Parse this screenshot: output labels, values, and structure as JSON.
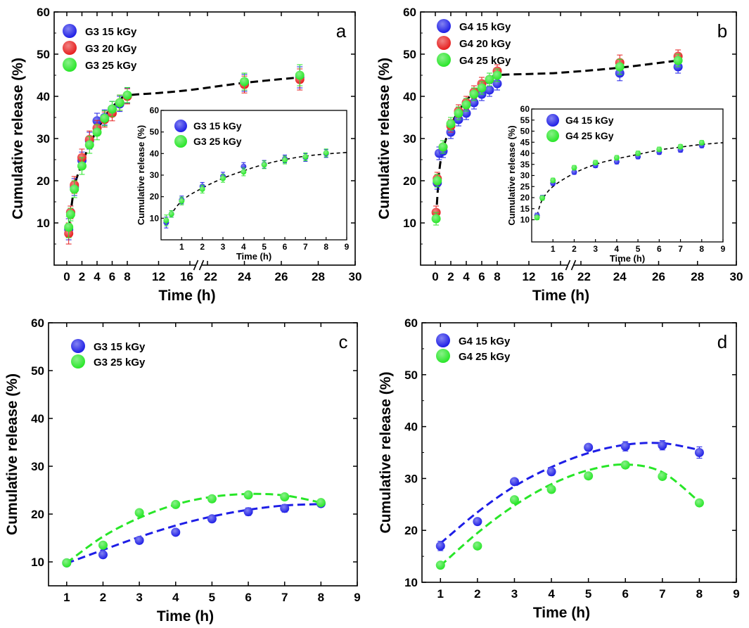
{
  "figure": {
    "description_label": "Cumulative release (%)",
    "x_label": "Time (h)"
  },
  "chart_data": [
    {
      "panel": "a",
      "type": "scatter",
      "title": "",
      "xlabel": "Time (h)",
      "ylabel": "Cumulative release (%)",
      "xlim": [
        -1,
        30
      ],
      "ylim": [
        0,
        60
      ],
      "x_ticks": [
        "0",
        "2",
        "4",
        "6",
        "8",
        "12",
        "16",
        "22",
        "24",
        "26",
        "28",
        "30"
      ],
      "y_ticks": [
        "10",
        "20",
        "30",
        "40",
        "50",
        "60"
      ],
      "axis_break": "16-22",
      "colors": {
        "G3 15 kGy": "#1e1ee6",
        "G3 20 kGy": "#e61e1e",
        "G3 25 kGy": "#28e628"
      },
      "series": [
        {
          "name": "G3 15 kGy",
          "x": [
            0.25,
            0.5,
            1,
            2,
            3,
            4,
            5,
            6,
            7,
            8,
            24,
            27
          ],
          "values": [
            8.5,
            12.5,
            18.5,
            24.8,
            29.5,
            34.2,
            35,
            37,
            38.2,
            40.2,
            43.2,
            44.5
          ],
          "errors": [
            2.5,
            1.5,
            2,
            2,
            2,
            1.8,
            1.8,
            1.8,
            1.8,
            1.8,
            2,
            2.5
          ]
        },
        {
          "name": "G3 20 kGy",
          "x": [
            0.25,
            0.5,
            1,
            2,
            3,
            4,
            5,
            6,
            7,
            8,
            24,
            27
          ],
          "values": [
            7.5,
            12.5,
            19,
            25.5,
            29.8,
            32.5,
            34.5,
            36,
            38.5,
            40,
            42.8,
            44
          ],
          "errors": [
            2.5,
            1.5,
            2,
            2,
            2,
            1.8,
            1.8,
            1.8,
            1.8,
            1.8,
            2,
            2.5
          ]
        },
        {
          "name": "G3 25 kGy",
          "x": [
            0.25,
            0.5,
            1,
            2,
            3,
            4,
            5,
            6,
            7,
            8,
            24,
            27
          ],
          "values": [
            9,
            12,
            18,
            23.5,
            28.5,
            31.5,
            34.8,
            37,
            38.5,
            40.3,
            43.5,
            45
          ],
          "errors": [
            2.5,
            1.5,
            2,
            2,
            2,
            1.8,
            1.8,
            1.8,
            1.8,
            1.8,
            2,
            2.5
          ]
        }
      ],
      "fit": {
        "x": [
          0.25,
          1,
          2,
          3,
          4,
          5,
          6,
          7,
          8,
          12,
          16,
          24,
          27
        ],
        "values": [
          8.5,
          18.5,
          24,
          28.5,
          32,
          35,
          37.5,
          39,
          40.2,
          40.8,
          41.5,
          43.2,
          44.5
        ]
      },
      "legend": [
        "G3 15 kGy",
        "G3 20 kGy",
        "G3 25 kGy"
      ],
      "legend_position": "top-left",
      "panel_label": "a",
      "inset": {
        "xlabel": "Time (h)",
        "ylabel": "Cumulative release (%)",
        "xlim": [
          0,
          9
        ],
        "ylim": [
          0,
          60
        ],
        "x_ticks": [
          "1",
          "2",
          "3",
          "4",
          "5",
          "6",
          "7",
          "8",
          "9"
        ],
        "y_ticks": [
          "10",
          "20",
          "30",
          "40",
          "50",
          "60"
        ],
        "legend": [
          "G3 15 kGy",
          "G3 25 kGy"
        ],
        "series": [
          {
            "name": "G3 15 kGy",
            "x": [
              0.25,
              0.5,
              1,
              2,
              3,
              4,
              5,
              6,
              7,
              8
            ],
            "values": [
              8,
              12,
              18.5,
              24.8,
              29.5,
              34,
              35,
              37.5,
              38.2,
              40
            ],
            "errors": [
              2.5,
              1.5,
              1.8,
              1.8,
              1.8,
              1.8,
              1.8,
              1.8,
              1.8,
              1.8
            ]
          },
          {
            "name": "G3 25 kGy",
            "x": [
              0.25,
              0.5,
              1,
              2,
              3,
              4,
              5,
              6,
              7,
              8
            ],
            "values": [
              9,
              12,
              18,
              23.5,
              28.5,
              31.5,
              34.8,
              37,
              38.5,
              40.3
            ],
            "errors": [
              2.5,
              1.5,
              1.8,
              1.8,
              1.8,
              1.8,
              1.8,
              1.8,
              1.8,
              1.8
            ]
          }
        ],
        "fit": {
          "x": [
            0.25,
            1,
            2,
            3,
            4,
            5,
            6,
            7,
            8,
            9
          ],
          "values": [
            8.5,
            18,
            24,
            28.5,
            32,
            35,
            37.2,
            38.8,
            39.8,
            40.5
          ]
        }
      }
    },
    {
      "panel": "b",
      "type": "scatter",
      "title": "",
      "xlabel": "Time (h)",
      "ylabel": "Cumulative release (%)",
      "xlim": [
        -1,
        30
      ],
      "ylim": [
        0,
        60
      ],
      "x_ticks": [
        "0",
        "2",
        "4",
        "6",
        "8",
        "12",
        "16",
        "22",
        "24",
        "26",
        "28",
        "30"
      ],
      "y_ticks": [
        "10",
        "20",
        "30",
        "40",
        "50",
        "60"
      ],
      "axis_break": "16-22",
      "colors": {
        "G4 15 kGy": "#1e1ee6",
        "G4 20 kGy": "#e61e1e",
        "G4 25 kGy": "#28e628"
      },
      "series": [
        {
          "name": "G4 15 kGy",
          "x": [
            0.25,
            0.5,
            1,
            2,
            3,
            4,
            5,
            6,
            7,
            8,
            24,
            27
          ],
          "values": [
            19.5,
            26.5,
            27,
            31.5,
            34.5,
            36,
            38.5,
            40.5,
            41.5,
            43,
            45.5,
            47
          ],
          "errors": [
            1.5,
            1.5,
            1.5,
            1.5,
            1.5,
            1.5,
            1.5,
            1.5,
            1.5,
            1.5,
            1.8,
            1.5
          ]
        },
        {
          "name": "G4 20 kGy",
          "x": [
            0.1,
            0.25,
            1,
            2,
            3,
            4,
            5,
            6,
            7,
            8,
            24,
            27
          ],
          "values": [
            12.5,
            20.5,
            28,
            33,
            36.5,
            38.5,
            41,
            43,
            44,
            46,
            48,
            49.5
          ],
          "errors": [
            1.5,
            1.5,
            1.5,
            1.5,
            1.5,
            1.5,
            1.5,
            1.5,
            1.5,
            1.5,
            1.8,
            1.5
          ]
        },
        {
          "name": "G4 25 kGy",
          "x": [
            0.1,
            0.25,
            1,
            2,
            3,
            4,
            5,
            6,
            7,
            8,
            24,
            27
          ],
          "values": [
            11,
            20,
            28,
            33.5,
            36,
            38,
            40.5,
            42,
            44,
            45,
            47,
            48.5
          ],
          "errors": [
            1.5,
            1.5,
            1.5,
            1.5,
            1.5,
            1.5,
            1.5,
            1.5,
            1.5,
            1.5,
            1.8,
            1.5
          ]
        }
      ],
      "fit": {
        "x": [
          0.1,
          0.5,
          1,
          2,
          3,
          4,
          5,
          6,
          7,
          8,
          12,
          16,
          24,
          27
        ],
        "values": [
          11.5,
          22,
          27.5,
          33,
          36.5,
          39,
          41,
          42.5,
          44,
          45,
          45.3,
          45.6,
          46.8,
          48.5
        ]
      },
      "legend": [
        "G4 15 kGy",
        "G4 20 kGy",
        "G4 25 kGy"
      ],
      "legend_position": "top-left",
      "panel_label": "b",
      "inset": {
        "xlabel": "Time (h)",
        "ylabel": "Cumulative release (%)",
        "xlim": [
          0,
          9
        ],
        "ylim": [
          0,
          60
        ],
        "x_ticks": [
          "1",
          "2",
          "3",
          "4",
          "5",
          "6",
          "7",
          "8",
          "9"
        ],
        "y_ticks": [
          "10",
          "15",
          "20",
          "25",
          "30",
          "35",
          "40",
          "45",
          "50",
          "55",
          "60"
        ],
        "legend": [
          "G4 15 kGy",
          "G4 25 kGy"
        ],
        "series": [
          {
            "name": "G4 15 kGy",
            "x": [
              0.25,
              0.5,
              1,
              2,
              3,
              4,
              5,
              6,
              7,
              8
            ],
            "values": [
              12,
              20,
              26.5,
              31.5,
              34.5,
              36.2,
              38.5,
              40.5,
              41.5,
              43.5
            ],
            "errors": [
              1,
              1,
              1,
              1,
              1,
              1,
              1,
              1,
              1,
              1
            ]
          },
          {
            "name": "G4 25 kGy",
            "x": [
              0.25,
              0.5,
              1,
              2,
              3,
              4,
              5,
              6,
              7,
              8
            ],
            "values": [
              11,
              19.8,
              27.8,
              33.5,
              35.8,
              38,
              40,
              41.8,
              43,
              44.8
            ],
            "errors": [
              1,
              1,
              1,
              1,
              1,
              1,
              1,
              1,
              1,
              1
            ]
          }
        ],
        "fit": {
          "x": [
            0.25,
            0.5,
            1,
            2,
            3,
            4,
            5,
            6,
            7,
            8,
            9
          ],
          "values": [
            12,
            19,
            25,
            31,
            35,
            37.5,
            39.5,
            41.5,
            42.8,
            44,
            44.8
          ]
        }
      }
    },
    {
      "panel": "c",
      "type": "scatter",
      "title": "",
      "xlabel": "Time (h)",
      "ylabel": "Cumulative release (%)",
      "xlim": [
        0.5,
        9
      ],
      "ylim": [
        5,
        60
      ],
      "x_ticks": [
        "1",
        "2",
        "3",
        "4",
        "5",
        "6",
        "7",
        "8",
        "9"
      ],
      "y_ticks": [
        "10",
        "20",
        "30",
        "40",
        "50",
        "60"
      ],
      "colors": {
        "G3 15 kGy": "#1e1ee6",
        "G3 25 kGy": "#28e628"
      },
      "series": [
        {
          "name": "G3 15 kGy",
          "x": [
            1,
            2,
            3,
            4,
            5,
            6,
            7,
            8
          ],
          "values": [
            9.8,
            11.5,
            14.5,
            16.2,
            19,
            20.5,
            21.2,
            22.2
          ],
          "errors": [
            0.6,
            0.5,
            0.6,
            0.6,
            0.6,
            0.8,
            0.8,
            0.6
          ]
        },
        {
          "name": "G3 25 kGy",
          "x": [
            1,
            2,
            3,
            4,
            5,
            6,
            7,
            8
          ],
          "values": [
            9.8,
            13.5,
            20.3,
            22,
            23.2,
            24,
            23.6,
            22.4
          ],
          "errors": [
            0.6,
            0.5,
            0.6,
            0.6,
            0.6,
            0.6,
            0.6,
            0.6
          ]
        }
      ],
      "fits": [
        {
          "name": "G3 15 kGy",
          "x": [
            1,
            2,
            3,
            4,
            5,
            6,
            7,
            8
          ],
          "values": [
            9.7,
            12.5,
            15.2,
            17.6,
            19.5,
            20.9,
            21.8,
            22.1
          ]
        },
        {
          "name": "G3 25 kGy",
          "x": [
            1,
            2,
            3,
            4,
            5,
            6,
            7,
            8
          ],
          "values": [
            9.8,
            15.3,
            19.2,
            22,
            23.6,
            24.2,
            23.9,
            22.4
          ]
        }
      ],
      "legend": [
        "G3 15 kGy",
        "G3 25 kGy"
      ],
      "legend_position": "top-left",
      "panel_label": "c"
    },
    {
      "panel": "d",
      "type": "scatter",
      "title": "",
      "xlabel": "Time (h)",
      "ylabel": "Cumulative release (%)",
      "xlim": [
        0.5,
        9
      ],
      "ylim": [
        10,
        60
      ],
      "x_ticks": [
        "1",
        "2",
        "3",
        "4",
        "5",
        "6",
        "7",
        "8",
        "9"
      ],
      "y_ticks": [
        "10",
        "20",
        "30",
        "40",
        "50",
        "60"
      ],
      "colors": {
        "G4 15 kGy": "#1e1ee6",
        "G4 25 kGy": "#28e628"
      },
      "series": [
        {
          "name": "G4 15 kGy",
          "x": [
            1,
            2,
            3,
            4,
            5,
            6,
            7,
            8
          ],
          "values": [
            17,
            21.7,
            29.4,
            31.3,
            36,
            36.2,
            36.4,
            35
          ],
          "errors": [
            0.9,
            0.6,
            0.6,
            0.7,
            0.6,
            0.9,
            0.9,
            1.1
          ]
        },
        {
          "name": "G4 25 kGy",
          "x": [
            1,
            2,
            3,
            4,
            5,
            6,
            7,
            8
          ],
          "values": [
            13.3,
            17,
            25.9,
            27.9,
            30.5,
            32.6,
            30.4,
            25.3
          ],
          "errors": [
            0.6,
            0.6,
            0.6,
            0.6,
            0.6,
            0.6,
            0.6,
            0.6
          ]
        }
      ],
      "fits": [
        {
          "name": "G4 15 kGy",
          "x": [
            1,
            2,
            3,
            4,
            5,
            6,
            7,
            8
          ],
          "values": [
            17.5,
            23.5,
            28.5,
            32.2,
            34.9,
            36.5,
            36.8,
            35.5
          ]
        },
        {
          "name": "G4 25 kGy",
          "x": [
            1,
            2,
            3,
            4,
            5,
            6,
            7,
            8
          ],
          "values": [
            13.2,
            19.5,
            24.8,
            28.9,
            31.6,
            32.7,
            31.2,
            25.5
          ]
        }
      ],
      "legend": [
        "G4 15 kGy",
        "G4 25 kGy"
      ],
      "legend_position": "top-left",
      "panel_label": "d"
    }
  ]
}
